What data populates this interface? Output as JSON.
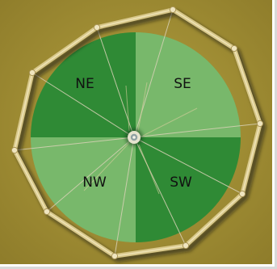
{
  "map": {
    "quadrants": {
      "ne": {
        "label": "NE",
        "color": "#2f8a35"
      },
      "se": {
        "label": "SE",
        "color": "#78b86b"
      },
      "nw": {
        "label": "NW",
        "color": "#78b86b"
      },
      "sw": {
        "label": "SW",
        "color": "#2f8a35"
      }
    },
    "background_color": "#a18f35",
    "fence_color": "#d8c88a"
  }
}
